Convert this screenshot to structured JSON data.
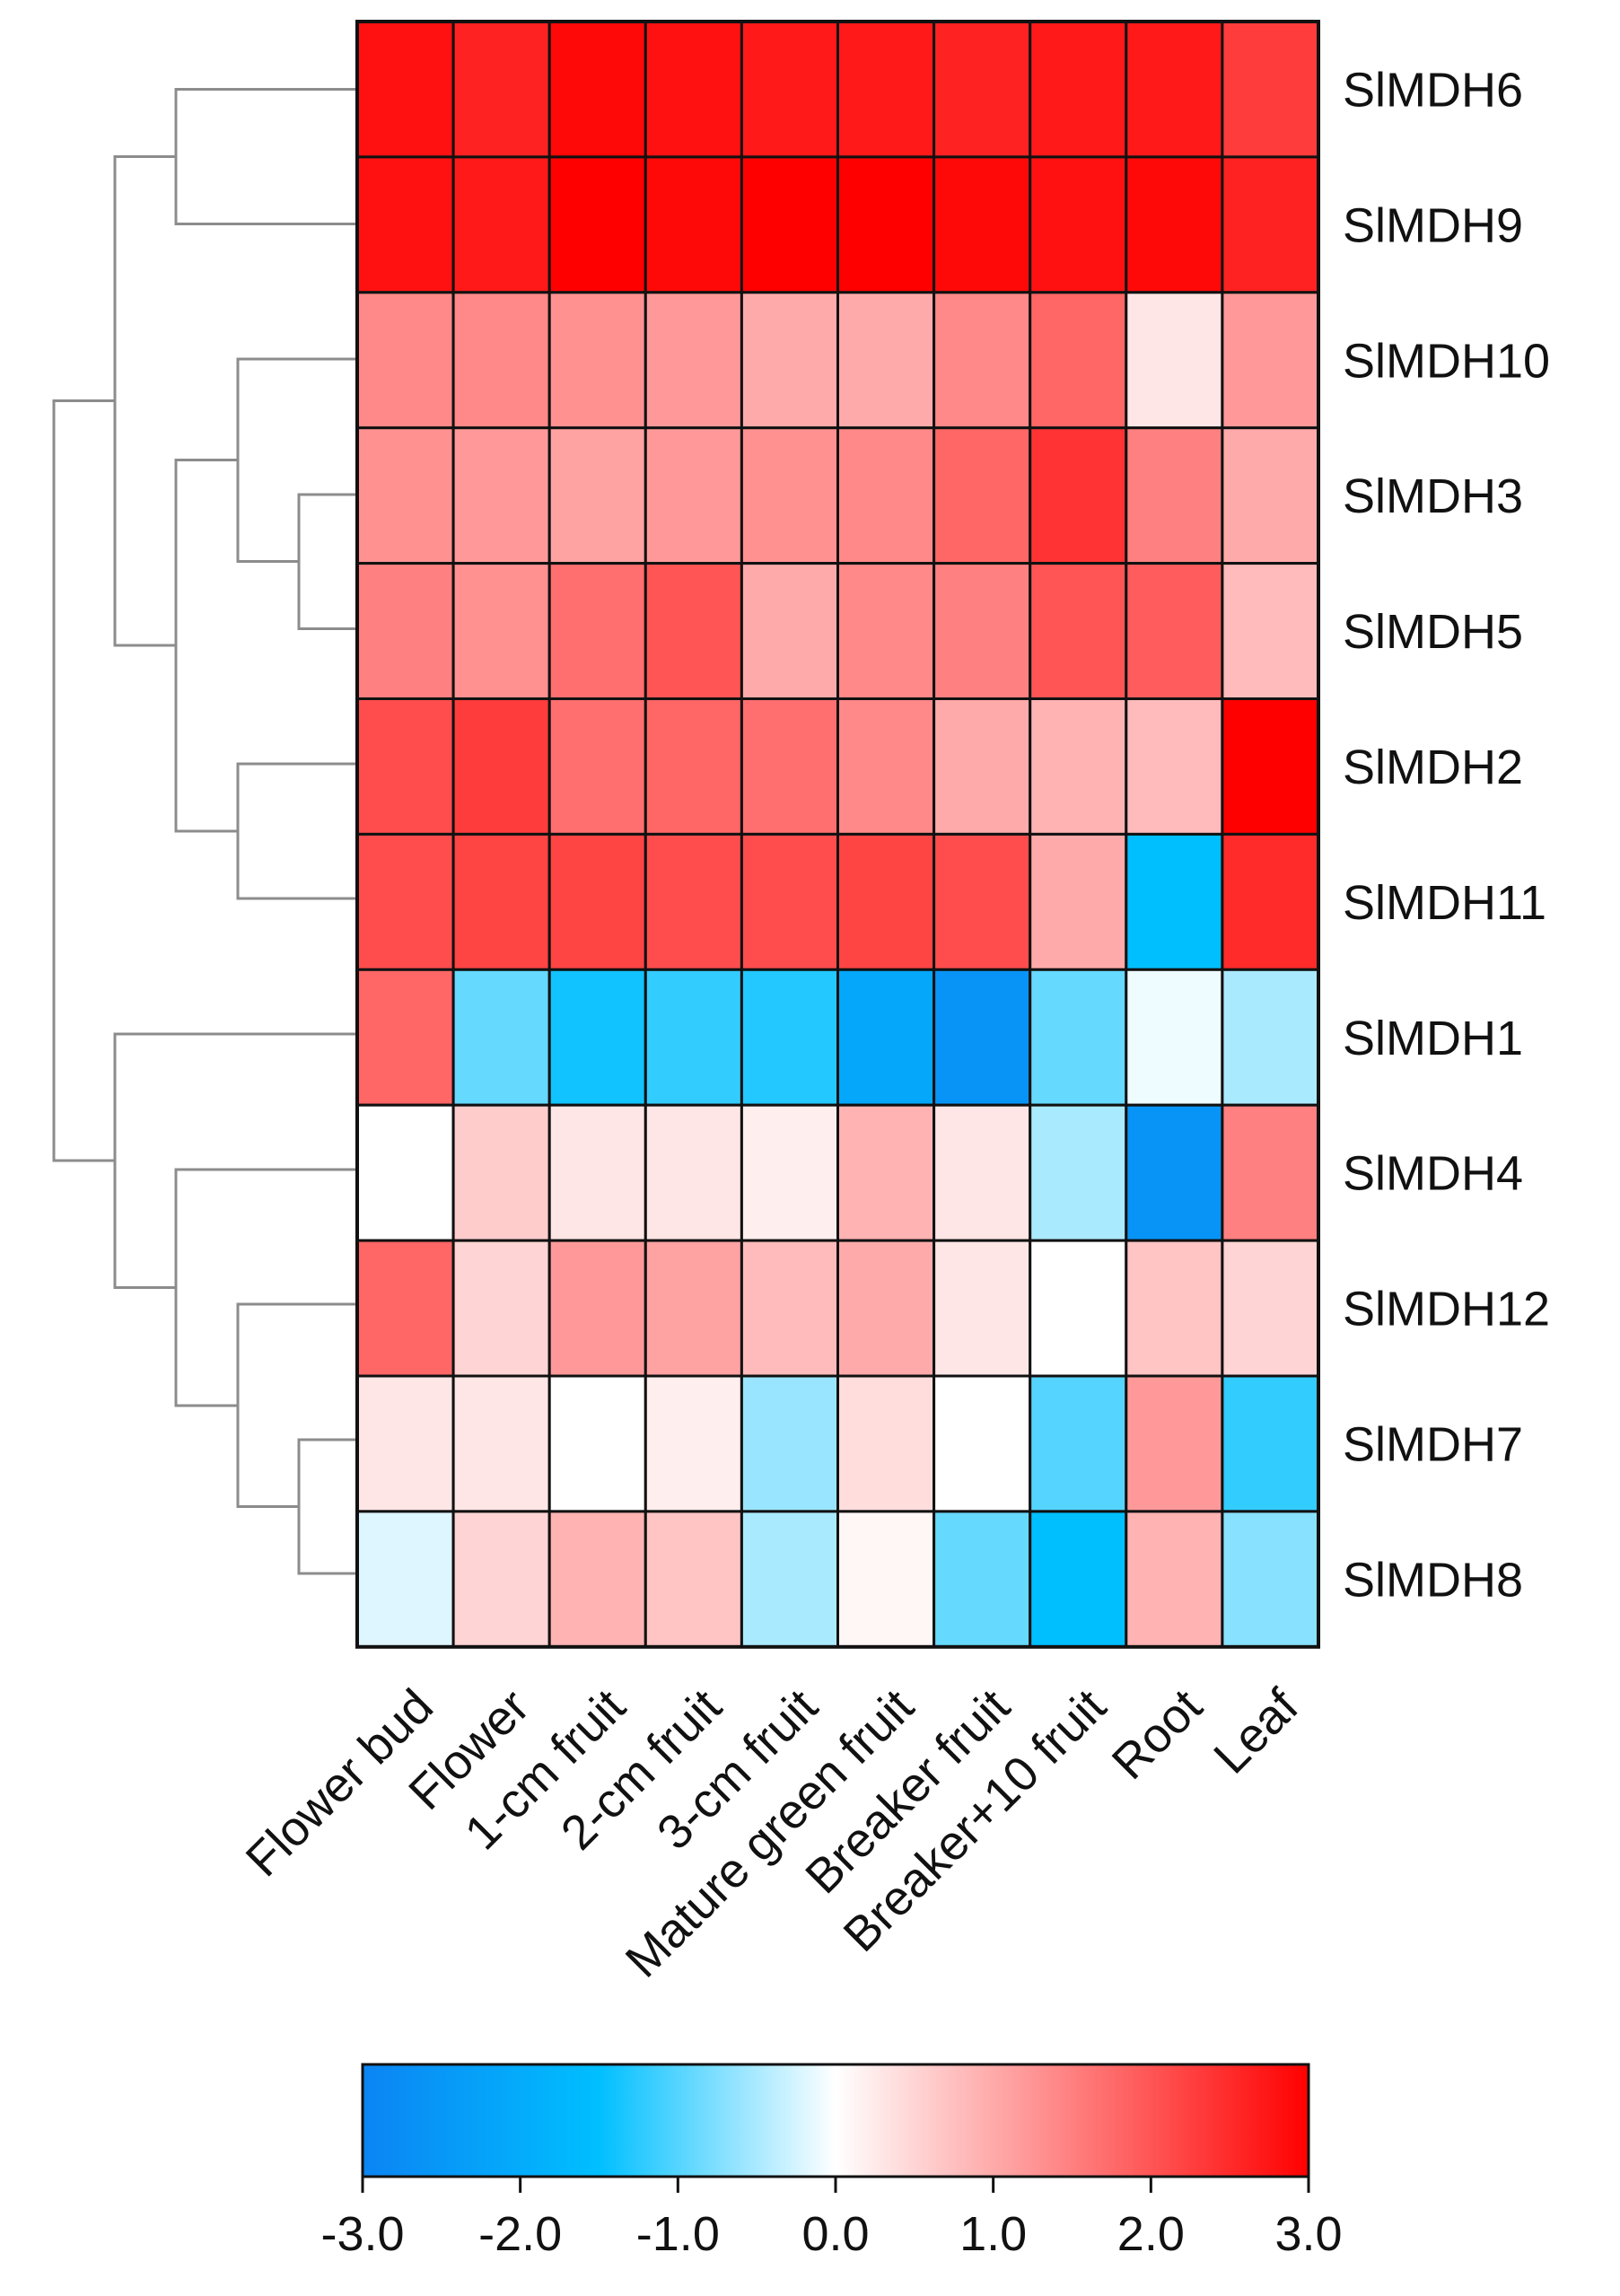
{
  "chart_data": {
    "type": "heatmap",
    "title": "",
    "rows": [
      "SlMDH6",
      "SlMDH9",
      "SlMDH10",
      "SlMDH3",
      "SlMDH5",
      "SlMDH2",
      "SlMDH11",
      "SlMDH1",
      "SlMDH4",
      "SlMDH12",
      "SlMDH7",
      "SlMDH8"
    ],
    "columns": [
      "Flower bud",
      "Flower",
      "1-cm fruit",
      "2-cm fruit",
      "3-cm fruit",
      "Mature green fruit",
      "Breaker fruit",
      "Breaker+10 fruit",
      "Root",
      "Leaf"
    ],
    "values": [
      [
        2.8,
        2.6,
        2.9,
        2.8,
        2.7,
        2.7,
        2.6,
        2.7,
        2.7,
        2.3
      ],
      [
        2.8,
        2.7,
        3.0,
        2.9,
        3.0,
        3.0,
        2.9,
        2.8,
        2.9,
        2.6
      ],
      [
        1.4,
        1.4,
        1.3,
        1.2,
        1.0,
        1.0,
        1.4,
        1.8,
        0.3,
        1.2
      ],
      [
        1.3,
        1.2,
        1.1,
        1.2,
        1.3,
        1.4,
        1.8,
        2.4,
        1.5,
        1.0
      ],
      [
        1.5,
        1.3,
        1.7,
        2.0,
        1.0,
        1.4,
        1.5,
        2.0,
        1.9,
        0.8
      ],
      [
        2.1,
        2.3,
        1.7,
        1.8,
        1.7,
        1.4,
        1.0,
        0.9,
        0.8,
        3.0
      ],
      [
        2.1,
        2.2,
        2.2,
        2.1,
        2.1,
        2.2,
        2.1,
        1.0,
        -1.5,
        2.5
      ],
      [
        1.8,
        -0.9,
        -1.4,
        -1.2,
        -1.3,
        -2.1,
        -2.6,
        -0.9,
        -0.1,
        -0.5
      ],
      [
        0.0,
        0.6,
        0.3,
        0.3,
        0.2,
        0.9,
        0.3,
        -0.5,
        -2.6,
        1.5
      ],
      [
        1.8,
        0.5,
        1.2,
        1.1,
        0.8,
        1.0,
        0.3,
        0.0,
        0.7,
        0.5
      ],
      [
        0.3,
        0.3,
        0.0,
        0.2,
        -0.6,
        0.4,
        0.0,
        -1.0,
        1.2,
        -1.2
      ],
      [
        -0.2,
        0.5,
        0.9,
        0.7,
        -0.5,
        0.1,
        -0.9,
        -1.5,
        0.9,
        -0.7
      ]
    ],
    "colorbar": {
      "range": [
        -3.0,
        3.0
      ],
      "ticks": [
        "-3.0",
        "-2.0",
        "-1.0",
        "0.0",
        "1.0",
        "2.0",
        "3.0"
      ],
      "colors": [
        "#0b84f3",
        "#00bfff",
        "#ffffff",
        "#ff0000"
      ]
    },
    "dendrogram": "row clustering (hierarchical)",
    "xlabel": "",
    "ylabel": ""
  }
}
